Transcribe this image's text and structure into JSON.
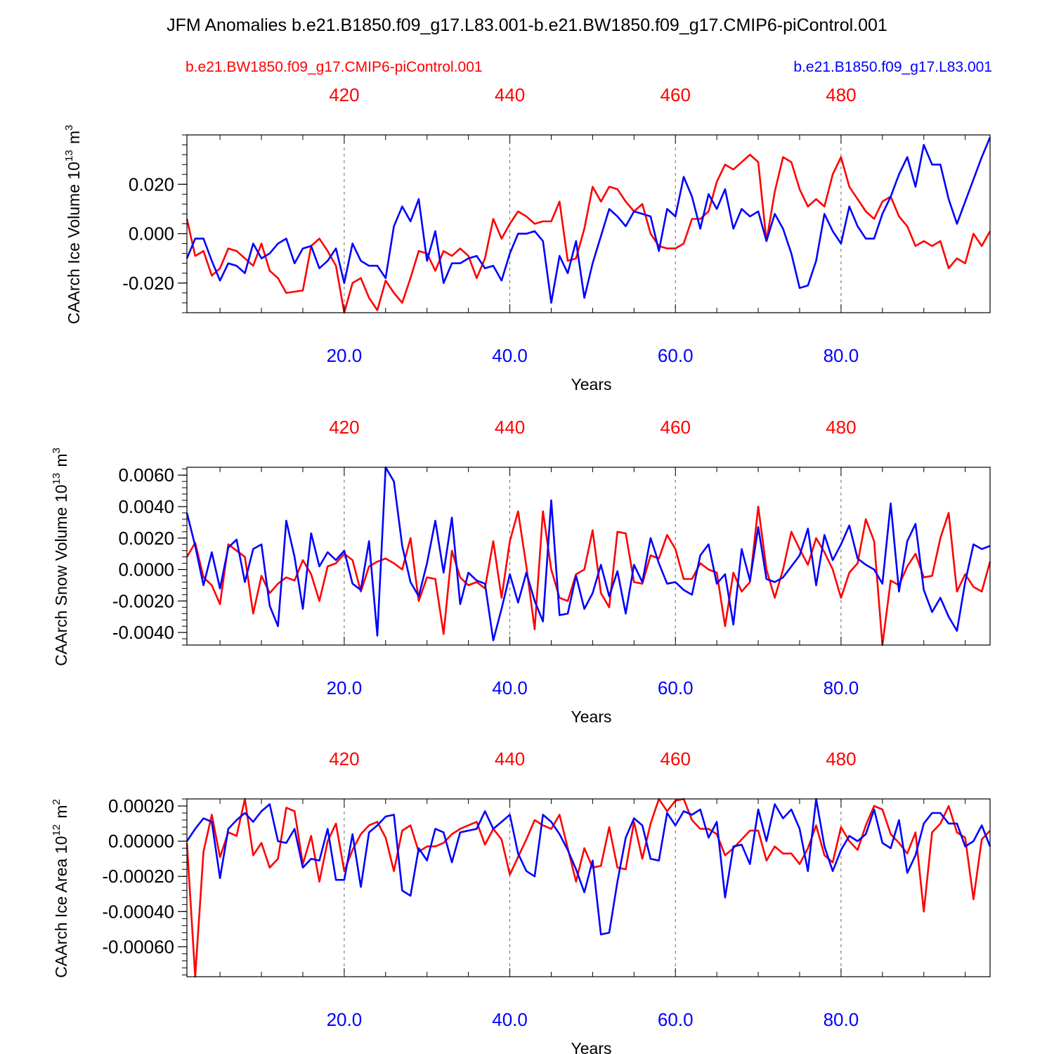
{
  "title": "JFM Anomalies b.e21.B1850.f09_g17.L83.001-b.e21.BW1850.f09_g17.CMIP6-piControl.001",
  "legend": {
    "red_label": "b.e21.BW1850.f09_g17.CMIP6-piControl.001",
    "blue_label": "b.e21.B1850.f09_g17.L83.001"
  },
  "colors": {
    "red": "#ff0000",
    "blue": "#0000ff",
    "axis": "#000000",
    "grid": "#666666"
  },
  "chart_data": [
    {
      "type": "line",
      "id": "ice-volume",
      "ylabel": "CAArch Ice Volume 10^13 m^3",
      "xlabel": "Years",
      "xlim": [
        1,
        98
      ],
      "ylim": [
        -0.032,
        0.04
      ],
      "yticks": [
        -0.02,
        0.0,
        0.02
      ],
      "ytick_labels": [
        "-0.020",
        "0.000",
        "0.020"
      ],
      "ytick_minor": 0.004,
      "bottom_xticks": [
        20,
        40,
        60,
        80
      ],
      "bottom_xtick_labels": [
        "20.0",
        "40.0",
        "60.0",
        "80.0"
      ],
      "top_xticks": [
        20,
        40,
        60,
        80
      ],
      "top_xtick_labels": [
        "420",
        "440",
        "460",
        "480"
      ],
      "series": [
        {
          "name": "b.e21.BW1850.f09_g17.CMIP6-piControl.001",
          "color": "red",
          "values": [
            0.006,
            -0.009,
            -0.007,
            -0.017,
            -0.014,
            -0.006,
            -0.007,
            -0.01,
            -0.013,
            -0.004,
            -0.015,
            -0.018,
            -0.024,
            -0.0235,
            -0.023,
            -0.005,
            -0.002,
            -0.007,
            -0.013,
            -0.032,
            -0.02,
            -0.018,
            -0.026,
            -0.031,
            -0.019,
            -0.024,
            -0.028,
            -0.018,
            -0.007,
            -0.008,
            -0.015,
            -0.007,
            -0.009,
            -0.006,
            -0.009,
            -0.018,
            -0.01,
            0.006,
            -0.002,
            0.004,
            0.009,
            0.007,
            0.004,
            0.005,
            0.005,
            0.013,
            -0.011,
            -0.01,
            0.002,
            0.019,
            0.013,
            0.019,
            0.018,
            0.013,
            0.009,
            0.012,
            0.0,
            -0.005,
            -0.006,
            -0.006,
            -0.004,
            0.006,
            0.006,
            0.009,
            0.021,
            0.028,
            0.026,
            0.029,
            0.032,
            0.029,
            -0.003,
            0.017,
            0.031,
            0.029,
            0.018,
            0.011,
            0.014,
            0.011,
            0.024,
            0.031,
            0.019,
            0.014,
            0.009,
            0.006,
            0.013,
            0.015,
            0.007,
            0.003,
            -0.005,
            -0.003,
            -0.005,
            -0.003,
            -0.014,
            -0.01,
            -0.012,
            0.0,
            -0.005,
            0.001
          ]
        },
        {
          "name": "b.e21.B1850.f09_g17.L83.001",
          "color": "blue",
          "values": [
            -0.01,
            -0.002,
            -0.002,
            -0.011,
            -0.019,
            -0.012,
            -0.013,
            -0.016,
            -0.004,
            -0.01,
            -0.008,
            -0.004,
            -0.002,
            -0.012,
            -0.006,
            -0.005,
            -0.014,
            -0.011,
            -0.006,
            -0.02,
            -0.004,
            -0.011,
            -0.013,
            -0.013,
            -0.018,
            0.003,
            0.011,
            0.005,
            0.014,
            -0.011,
            0.001,
            -0.02,
            -0.012,
            -0.012,
            -0.01,
            -0.009,
            -0.014,
            -0.013,
            -0.019,
            -0.008,
            0.0,
            0.0,
            0.001,
            -0.003,
            -0.028,
            -0.009,
            -0.016,
            -0.003,
            -0.026,
            -0.012,
            -0.001,
            0.01,
            0.007,
            0.003,
            0.009,
            0.008,
            0.007,
            -0.007,
            0.01,
            0.007,
            0.023,
            0.015,
            0.002,
            0.016,
            0.01,
            0.018,
            0.002,
            0.01,
            0.007,
            0.009,
            -0.003,
            0.008,
            0.002,
            -0.008,
            -0.022,
            -0.021,
            -0.011,
            0.008,
            0.001,
            -0.004,
            0.011,
            0.003,
            -0.002,
            -0.002,
            0.008,
            0.015,
            0.024,
            0.031,
            0.019,
            0.036,
            0.028,
            0.028,
            0.014,
            0.004,
            0.013,
            0.022,
            0.031,
            0.039
          ]
        }
      ]
    },
    {
      "type": "line",
      "id": "snow-volume",
      "ylabel": "CAArch Snow Volume 10^13 m^3",
      "xlabel": "Years",
      "xlim": [
        1,
        98
      ],
      "ylim": [
        -0.0048,
        0.0065
      ],
      "yticks": [
        -0.004,
        -0.002,
        0.0,
        0.002,
        0.004,
        0.006
      ],
      "ytick_labels": [
        "-0.0040",
        "-0.0020",
        "0.0000",
        "0.0020",
        "0.0040",
        "0.0060"
      ],
      "ytick_minor": 0.0004,
      "bottom_xticks": [
        20,
        40,
        60,
        80
      ],
      "bottom_xtick_labels": [
        "20.0",
        "40.0",
        "60.0",
        "80.0"
      ],
      "top_xticks": [
        20,
        40,
        60,
        80
      ],
      "top_xtick_labels": [
        "420",
        "440",
        "460",
        "480"
      ],
      "series": [
        {
          "name": "b.e21.BW1850.f09_g17.CMIP6-piControl.001",
          "color": "red",
          "values": [
            0.0008,
            0.0017,
            -0.0005,
            -0.001,
            -0.0022,
            0.0016,
            0.0012,
            0.0008,
            -0.0028,
            -0.0004,
            -0.0015,
            -0.0009,
            -0.0005,
            -0.0007,
            0.0006,
            -0.0003,
            -0.002,
            0.0002,
            0.0004,
            0.001,
            0.0006,
            -0.0014,
            0.0002,
            0.0005,
            0.0007,
            0.0004,
            0.0,
            0.002,
            -0.002,
            -0.0005,
            -0.0006,
            -0.0041,
            0.0012,
            -0.0005,
            -0.001,
            -0.0008,
            -0.0012,
            0.0018,
            -0.0018,
            0.0018,
            0.0037,
            0.0002,
            -0.0038,
            0.0037,
            0.0,
            -0.0018,
            -0.002,
            -0.0003,
            0.0,
            0.0025,
            -0.0015,
            -0.0024,
            0.0024,
            0.0023,
            -0.0008,
            -0.0009,
            0.0009,
            0.0007,
            0.0022,
            0.0013,
            -0.0006,
            -0.0006,
            0.0004,
            0.0,
            -0.0002,
            -0.0036,
            -0.0002,
            -0.0014,
            -0.0008,
            0.004,
            0.0,
            -0.0018,
            0.0,
            0.0024,
            0.0013,
            0.0003,
            0.002,
            0.0011,
            0.0,
            -0.0018,
            -0.0002,
            0.0004,
            0.0032,
            0.0018,
            -0.0048,
            -0.0007,
            -0.001,
            0.0002,
            0.001,
            -0.0005,
            -0.0004,
            0.002,
            0.0036,
            -0.0014,
            -0.0003,
            -0.0011,
            -0.0014,
            0.0005
          ]
        },
        {
          "name": "b.e21.B1850.f09_g17.L83.001",
          "color": "blue",
          "values": [
            0.0036,
            0.0015,
            -0.001,
            0.0011,
            -0.0012,
            0.0014,
            0.0019,
            -0.0008,
            0.0013,
            0.0016,
            -0.0023,
            -0.0036,
            0.0031,
            0.0008,
            -0.0025,
            0.0023,
            0.0002,
            0.0011,
            0.0006,
            0.0012,
            -0.0009,
            -0.0013,
            0.0018,
            -0.0042,
            0.0065,
            0.0056,
            0.0015,
            -0.0008,
            -0.0017,
            0.0004,
            0.0031,
            -0.0002,
            0.0033,
            -0.0022,
            -0.0002,
            -0.0007,
            -0.0009,
            -0.0045,
            -0.0025,
            -0.0003,
            -0.0021,
            -0.0002,
            -0.002,
            -0.0033,
            0.0044,
            -0.0029,
            -0.0028,
            -0.0004,
            -0.0025,
            -0.0015,
            0.0003,
            -0.0017,
            -0.0001,
            -0.0028,
            0.0003,
            -0.0008,
            0.002,
            0.0004,
            -0.0009,
            -0.0008,
            -0.0013,
            -0.0016,
            0.0009,
            0.0016,
            -0.0009,
            -0.0003,
            -0.0035,
            0.0013,
            -0.0007,
            0.0027,
            -0.0006,
            -0.0008,
            -0.0005,
            0.0002,
            0.0009,
            0.0026,
            -0.001,
            0.0022,
            0.0006,
            0.0016,
            0.0028,
            0.0007,
            0.0003,
            0.0,
            -0.0009,
            0.0042,
            -0.0014,
            0.0018,
            0.0029,
            -0.0013,
            -0.0027,
            -0.0018,
            -0.003,
            -0.0039,
            -0.0008,
            0.0016,
            0.0013,
            0.0015
          ]
        }
      ]
    },
    {
      "type": "line",
      "id": "ice-area",
      "ylabel": "CAArch Ice Area 10^12 m^2",
      "xlabel": "Years",
      "xlim": [
        1,
        98
      ],
      "ylim": [
        -0.00077,
        0.00024
      ],
      "yticks": [
        -0.0006,
        -0.0004,
        -0.0002,
        0.0,
        0.0002
      ],
      "ytick_labels": [
        "-0.00060",
        "-0.00040",
        "-0.00020",
        "0.00000",
        "0.00020"
      ],
      "ytick_minor": 4e-05,
      "bottom_xticks": [
        20,
        40,
        60,
        80
      ],
      "bottom_xtick_labels": [
        "20.0",
        "40.0",
        "60.0",
        "80.0"
      ],
      "top_xticks": [
        20,
        40,
        60,
        80
      ],
      "top_xtick_labels": [
        "420",
        "440",
        "460",
        "480"
      ],
      "series": [
        {
          "name": "b.e21.BW1850.f09_g17.CMIP6-piControl.001",
          "color": "red",
          "values": [
            -1e-05,
            -0.00077,
            -6e-05,
            0.00015,
            -9e-05,
            5e-05,
            3e-05,
            0.00024,
            -8e-05,
            -1e-05,
            -0.00015,
            -0.0001,
            0.00019,
            0.00017,
            -0.00013,
            3e-05,
            -0.00023,
            0.0,
            0.0001,
            -0.00017,
            -5e-05,
            4e-05,
            9e-05,
            0.00011,
            2e-05,
            -0.00017,
            6e-05,
            9e-05,
            -6e-05,
            -3e-05,
            -3e-05,
            -1e-05,
            4e-05,
            7e-05,
            9e-05,
            0.00011,
            -2e-05,
            7e-05,
            1e-05,
            -0.00019,
            -9e-05,
            1e-05,
            0.00012,
            9e-05,
            7e-05,
            0.00015,
            -4e-05,
            -0.00023,
            -4e-05,
            -0.00015,
            -0.00014,
            8e-05,
            -0.00015,
            -0.00016,
            0.00011,
            -0.0001,
            0.0001,
            0.00024,
            0.00017,
            0.00023,
            0.00024,
            0.00012,
            7e-05,
            7e-05,
            4e-05,
            -8e-05,
            -4e-05,
            1e-05,
            6e-05,
            6e-05,
            -0.00011,
            -3e-05,
            -7e-05,
            -7e-05,
            -0.00013,
            -4e-05,
            9e-05,
            -8e-05,
            -0.00012,
            8e-05,
            0.0,
            -5e-05,
            9e-05,
            0.0002,
            0.00018,
            4e-05,
            -1e-05,
            -7e-05,
            5e-05,
            -0.0004,
            5e-05,
            0.0001,
            0.0002,
            5e-05,
            2e-05,
            -0.00033,
            1e-05,
            6e-05
          ]
        },
        {
          "name": "b.e21.B1850.f09_g17.L83.001",
          "color": "blue",
          "values": [
            0.0,
            7e-05,
            0.00013,
            0.00011,
            -0.00021,
            7e-05,
            0.00012,
            0.00016,
            0.00011,
            0.00017,
            0.00021,
            0.0,
            -1e-05,
            7e-05,
            -0.00015,
            -0.0001,
            -0.00011,
            7e-05,
            -0.00022,
            -0.00022,
            4e-05,
            -0.00026,
            5e-05,
            9e-05,
            0.00014,
            0.00015,
            -0.00028,
            -0.00031,
            -4e-05,
            -0.00011,
            7e-05,
            5e-05,
            -0.00012,
            5e-05,
            6e-05,
            7e-05,
            0.00017,
            7e-05,
            0.00011,
            0.00015,
            -7e-05,
            -0.00017,
            -0.0002,
            0.00015,
            0.00011,
            4e-05,
            -5e-05,
            -0.00016,
            -0.00029,
            -0.00011,
            -0.00053,
            -0.00052,
            -0.00023,
            2e-05,
            0.00013,
            9e-05,
            -0.0001,
            -0.00011,
            0.00016,
            9e-05,
            0.00017,
            0.00015,
            0.00018,
            2e-05,
            0.00011,
            -0.00032,
            -3e-05,
            -2e-05,
            -0.00013,
            0.00018,
            0.0,
            0.00021,
            0.00013,
            0.00018,
            7e-05,
            -0.00017,
            0.00024,
            -3e-05,
            -0.00017,
            -5e-05,
            3e-05,
            0.0,
            4e-05,
            0.00018,
            -1e-05,
            -4e-05,
            0.00012,
            -0.00018,
            -8e-05,
            0.0001,
            0.00016,
            0.00016,
            0.0001,
            0.0001,
            -3e-05,
            0.0,
            9e-05,
            -3e-05
          ]
        }
      ]
    }
  ]
}
